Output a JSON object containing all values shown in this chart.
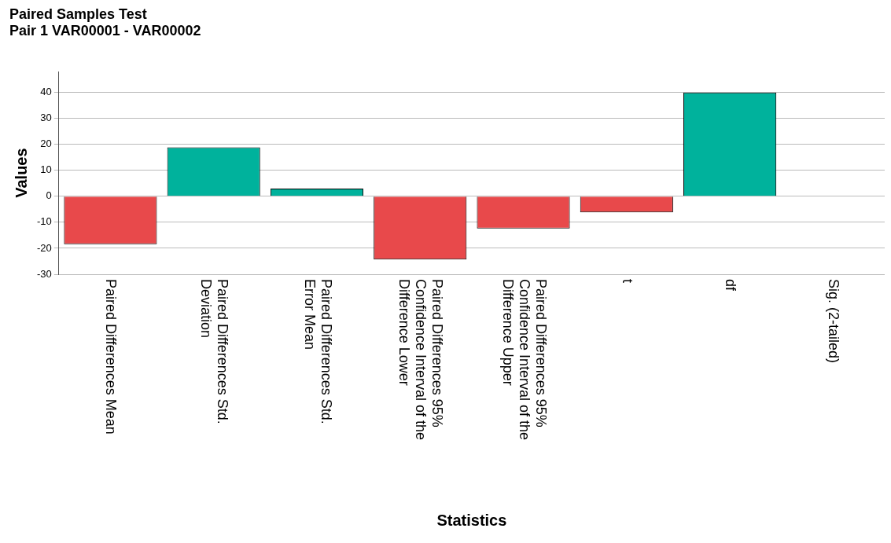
{
  "chart_data": {
    "type": "bar",
    "title": "Paired Samples Test",
    "subtitle": "Pair 1 VAR00001 - VAR00002",
    "xlabel": "Statistics",
    "ylabel": "Values",
    "categories": [
      "Paired Differences Mean",
      "Paired Differences Std. Deviation",
      "Paired Differences Std. Error Mean",
      "Paired Differences 95% Confidence Interval of the Difference Lower",
      "Paired Differences 95% Confidence Interval of the Difference Upper",
      "t",
      "df",
      "Sig. (2-tailed)"
    ],
    "values": [
      -18.4,
      18.9,
      3.0,
      -24.3,
      -12.4,
      -6.2,
      40,
      0
    ],
    "colors": [
      "#e8494b",
      "#00b29c",
      "#00b29c",
      "#e8494b",
      "#e8494b",
      "#e8494b",
      "#00b29c",
      "#00b29c"
    ],
    "ylim": [
      -30,
      48
    ],
    "yticks": [
      -30,
      -20,
      -10,
      0,
      10,
      20,
      30,
      40
    ],
    "grid": "y",
    "legend": false
  }
}
